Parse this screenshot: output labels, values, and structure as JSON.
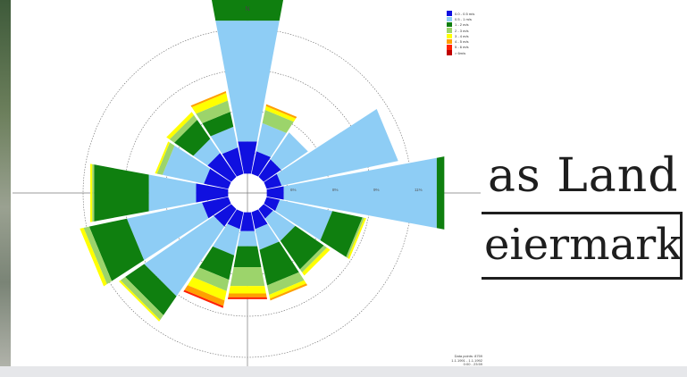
{
  "chart_data": {
    "type": "rose",
    "north_label": "N",
    "ring_labels": [
      "6%",
      "8%",
      "9%",
      "11%"
    ],
    "directions_deg": [
      0,
      22.5,
      45,
      67.5,
      90,
      112.5,
      135,
      157.5,
      180,
      202.5,
      225,
      247.5,
      270,
      292.5,
      315,
      337.5
    ],
    "series": [
      {
        "name": "0.0 - 0.5 m/s",
        "color": "#1010e0",
        "values": [
          1.7,
          1.2,
          1.1,
          0.8,
          0.9,
          0.7,
          0.6,
          0.9,
          1.0,
          0.9,
          1.1,
          1.4,
          1.7,
          1.3,
          1.5,
          1.4
        ]
      },
      {
        "name": "0.5 - 1 m/s",
        "color": "#8ecdf5",
        "values": [
          6.4,
          1.5,
          1.7,
          6.2,
          8.1,
          2.8,
          1.4,
          1.1,
          0.8,
          1.4,
          4.4,
          4.0,
          2.5,
          2.2,
          0.9,
          1.1
        ]
      },
      {
        "name": "1 - 2 m/s",
        "color": "#0f7f0f",
        "values": [
          5.2,
          0.0,
          0.0,
          0.0,
          0.4,
          1.6,
          1.8,
          1.9,
          1.1,
          1.3,
          1.2,
          2.0,
          2.9,
          0.0,
          1.2,
          0.8
        ]
      },
      {
        "name": "2 - 3 m/s",
        "color": "#9cd46b",
        "values": [
          0.6,
          0.7,
          0.0,
          0.0,
          0.0,
          0.1,
          0.2,
          0.5,
          1.0,
          0.6,
          0.3,
          0.3,
          0.1,
          0.3,
          0.3,
          0.6
        ]
      },
      {
        "name": "3 - 4 m/s",
        "color": "#ffff00",
        "values": [
          0.3,
          0.2,
          0.0,
          0.0,
          0.0,
          0.1,
          0.2,
          0.2,
          0.4,
          0.5,
          0.1,
          0.2,
          0.1,
          0.1,
          0.2,
          0.4
        ]
      },
      {
        "name": "4 - 5 m/s",
        "color": "#ffa000",
        "values": [
          0.3,
          0.1,
          0.0,
          0.0,
          0.0,
          0.0,
          0.0,
          0.1,
          0.2,
          0.3,
          0.0,
          0.0,
          0.0,
          0.0,
          0.0,
          0.1
        ]
      },
      {
        "name": "5 - 6 m/s",
        "color": "#ff2000",
        "values": [
          0.1,
          0.0,
          0.0,
          0.0,
          0.0,
          0.0,
          0.0,
          0.0,
          0.1,
          0.1,
          0.0,
          0.0,
          0.0,
          0.0,
          0.0,
          0.0
        ]
      },
      {
        "name": "> 6m/s",
        "color": "#c00000",
        "values": [
          0,
          0,
          0,
          0,
          0,
          0,
          0,
          0,
          0,
          0,
          0,
          0,
          0,
          0,
          0,
          0
        ]
      }
    ],
    "data_points_label": "Data points: 8759",
    "period_lines": [
      "1.1.1991 - 1.1.1992",
      "0:00 - 23:59"
    ]
  },
  "logo": {
    "line1": "as Land",
    "line2": "eiermark"
  }
}
